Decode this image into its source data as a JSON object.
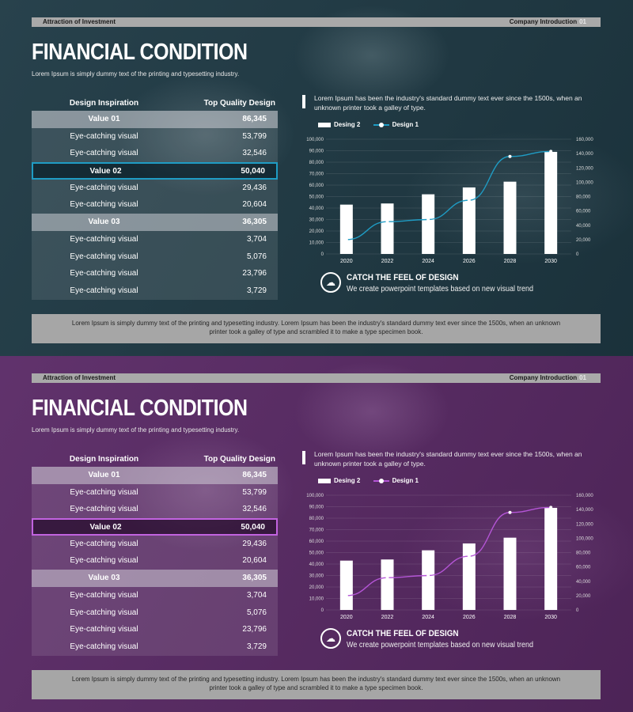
{
  "header": {
    "left": "Attraction  of Investment",
    "right": "Company Introduction",
    "page_num": "01"
  },
  "title": "FINANCIAL CONDITION",
  "subtitle": "Lorem Ipsum is simply dummy text of the printing and typesetting industry.",
  "table": {
    "headers": [
      "Design Inspiration",
      "Top Quality  Design"
    ],
    "rows": [
      {
        "label": "Value 01",
        "value": "86,345",
        "kind": "group"
      },
      {
        "label": "Eye-catching visual",
        "value": "53,799",
        "kind": "normal"
      },
      {
        "label": "Eye-catching visual",
        "value": "32,546",
        "kind": "normal"
      },
      {
        "label": "Value 02",
        "value": "50,040",
        "kind": "highlight"
      },
      {
        "label": "Eye-catching visual",
        "value": "29,436",
        "kind": "normal"
      },
      {
        "label": "Eye-catching visual",
        "value": "20,604",
        "kind": "normal"
      },
      {
        "label": "Value 03",
        "value": "36,305",
        "kind": "group"
      },
      {
        "label": "Eye-catching visual",
        "value": "3,704",
        "kind": "normal"
      },
      {
        "label": "Eye-catching visual",
        "value": "5,076",
        "kind": "normal"
      },
      {
        "label": "Eye-catching visual",
        "value": "23,796",
        "kind": "normal"
      },
      {
        "label": "Eye-catching visual",
        "value": "3,729",
        "kind": "normal"
      }
    ]
  },
  "right_text": "Lorem Ipsum has been the industry's standard dummy text ever since the 1500s, when an unknown printer took a galley of type.",
  "catch": {
    "title": "CATCH THE FEEL OF DESIGN",
    "text": "We create powerpoint templates based on new visual trend",
    "icon": "cloud-dollar-icon"
  },
  "footer": "Lorem Ipsum is simply dummy text of the printing and typesetting industry. Lorem Ipsum has been the industry's standard dummy text ever since the 1500s, when an unknown printer took a galley of type and scrambled it to make a type specimen book.",
  "themes": [
    {
      "name": "teal",
      "accent": "#1f9cc4",
      "background": "#1f3a45"
    },
    {
      "name": "purple",
      "accent": "#b455d6",
      "background": "#5a2a66"
    }
  ],
  "chart_data": {
    "type": "bar",
    "categories": [
      "2020",
      "2022",
      "2024",
      "2026",
      "2028",
      "2030"
    ],
    "series": [
      {
        "name": "Desing 2",
        "type": "bar",
        "axis": "left",
        "values": [
          43000,
          44000,
          52000,
          58000,
          63000,
          89000
        ],
        "color": "#ffffff"
      },
      {
        "name": "Design 1",
        "type": "line",
        "axis": "right",
        "values": [
          20000,
          45000,
          48000,
          75000,
          136000,
          143000
        ]
      }
    ],
    "y_left": {
      "min": 0,
      "max": 100000,
      "step": 10000,
      "ticks": [
        "0",
        "10,000",
        "20,000",
        "30,000",
        "40,000",
        "50,000",
        "60,000",
        "70,000",
        "80,000",
        "90,000",
        "100,000"
      ]
    },
    "y_right": {
      "min": 0,
      "max": 160000,
      "step": 20000,
      "ticks": [
        "0",
        "20,000",
        "40,000",
        "60,000",
        "80,000",
        "100,000",
        "120,000",
        "140,000",
        "160,000"
      ]
    },
    "grid": true,
    "legend": "top-left"
  }
}
